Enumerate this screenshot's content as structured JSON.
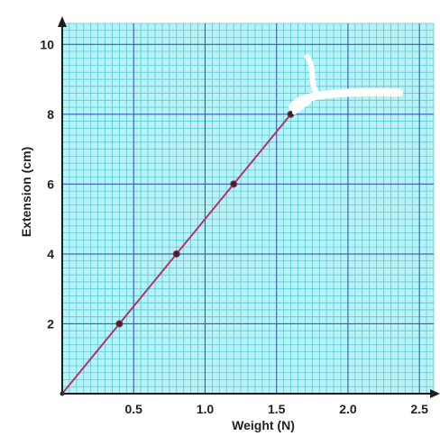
{
  "chart_data": {
    "type": "line",
    "xlabel": "Weight (N)",
    "ylabel": "Extension (cm)",
    "xlim": [
      0,
      2.6
    ],
    "ylim": [
      0,
      10.6
    ],
    "x_ticks": [
      0.5,
      1.0,
      1.5,
      2.0,
      2.5
    ],
    "x_tick_labels": [
      "0.5",
      "1.0",
      "1.5",
      "2.0",
      "2.5"
    ],
    "y_ticks": [
      2,
      4,
      6,
      8,
      10
    ],
    "y_tick_labels": [
      "2",
      "4",
      "6",
      "8",
      "10"
    ],
    "grid": true,
    "series": [
      {
        "x": [
          0,
          0.4,
          0.8,
          1.2,
          1.6
        ],
        "y": [
          0,
          2,
          4,
          6,
          8
        ],
        "markers": [
          false,
          true,
          true,
          true,
          true
        ]
      }
    ]
  },
  "colors": {
    "background": "#b9f2f6",
    "minor_grid": "#56ccd8",
    "major_grid": "#2c5fb9",
    "axis": "#1d1d1d",
    "line": "#b2346a",
    "marker": "#2a2a2a",
    "correction_mark": "#ffffff"
  }
}
